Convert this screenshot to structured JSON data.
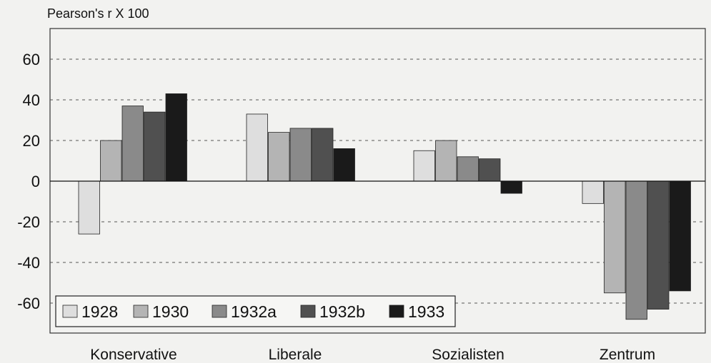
{
  "chart_data": {
    "type": "bar",
    "ylabel": "Pearson's r X 100",
    "xlabel": "",
    "ylim": [
      -75,
      75
    ],
    "yticks": [
      60,
      40,
      20,
      0,
      -20,
      -40,
      -60
    ],
    "grid": "horizontal dashed",
    "legend_position": "bottom-left",
    "categories": [
      "Konservative",
      "Liberale",
      "Sozialisten",
      "Zentrum"
    ],
    "series": [
      {
        "name": "1928",
        "color": "#dedede",
        "values": [
          -26,
          33,
          15,
          -11
        ]
      },
      {
        "name": "1930",
        "color": "#b4b4b4",
        "values": [
          20,
          24,
          20,
          -55
        ]
      },
      {
        "name": "1932a",
        "color": "#8a8a8a",
        "values": [
          37,
          26,
          12,
          -68
        ]
      },
      {
        "name": "1932b",
        "color": "#505050",
        "values": [
          34,
          26,
          11,
          -63
        ]
      },
      {
        "name": "1933",
        "color": "#1a1a1a",
        "values": [
          43,
          16,
          -6,
          -54
        ]
      }
    ]
  }
}
